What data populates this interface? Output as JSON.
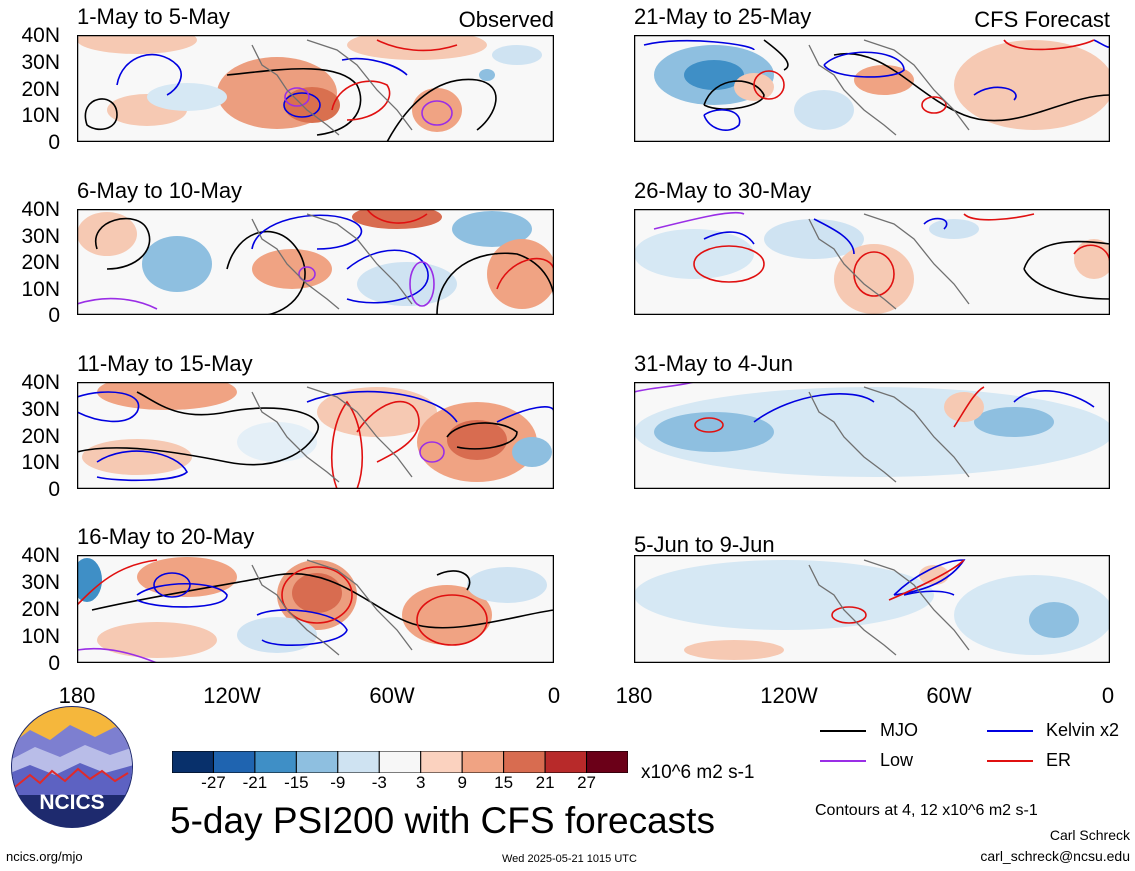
{
  "panels": [
    {
      "id": "p1",
      "title": "1-May to 5-May",
      "tag": "Observed"
    },
    {
      "id": "p2",
      "title": "6-May to 10-May",
      "tag": ""
    },
    {
      "id": "p3",
      "title": "11-May to 15-May",
      "tag": ""
    },
    {
      "id": "p4",
      "title": "16-May to 20-May",
      "tag": ""
    },
    {
      "id": "p5",
      "title": "21-May to 25-May",
      "tag": "CFS Forecast"
    },
    {
      "id": "p6",
      "title": "26-May to 30-May",
      "tag": ""
    },
    {
      "id": "p7",
      "title": "31-May to 4-Jun",
      "tag": ""
    },
    {
      "id": "p8",
      "title": "5-Jun to 9-Jun",
      "tag": ""
    }
  ],
  "y_axis_labels": [
    "40N",
    "30N",
    "20N",
    "10N",
    "0"
  ],
  "x_axis_labels": [
    "180",
    "120W",
    "60W",
    "0"
  ],
  "legend": {
    "mjo": {
      "label": "MJO",
      "color": "#000000"
    },
    "kelvin": {
      "label": "Kelvin x2",
      "color": "#0000e0"
    },
    "low": {
      "label": "Low",
      "color": "#9a2ee6"
    },
    "er": {
      "label": "ER",
      "color": "#e01010"
    }
  },
  "colorbar": {
    "colors": [
      "#08306b",
      "#1f64b0",
      "#3f8fc6",
      "#8ebfe0",
      "#cfe3f2",
      "#f7f7f7",
      "#fbd2bf",
      "#f0a383",
      "#d86c50",
      "#b82a2a",
      "#6b0018"
    ],
    "labels": [
      "-27",
      "-21",
      "-15",
      "-9",
      "-3",
      "3",
      "9",
      "15",
      "21",
      "27"
    ],
    "units": "x10^6 m2 s-1"
  },
  "logo": {
    "text": "NCICS"
  },
  "main_title": "5-day PSI200 with CFS forecasts",
  "contour_note": "Contours at 4, 12 x10^6 m2 s-1",
  "author": "Carl Schreck",
  "email": "carl_schreck@ncsu.edu",
  "url": "ncics.org/mjo",
  "timestamp": "Wed 2025-05-21 1015 UTC"
}
